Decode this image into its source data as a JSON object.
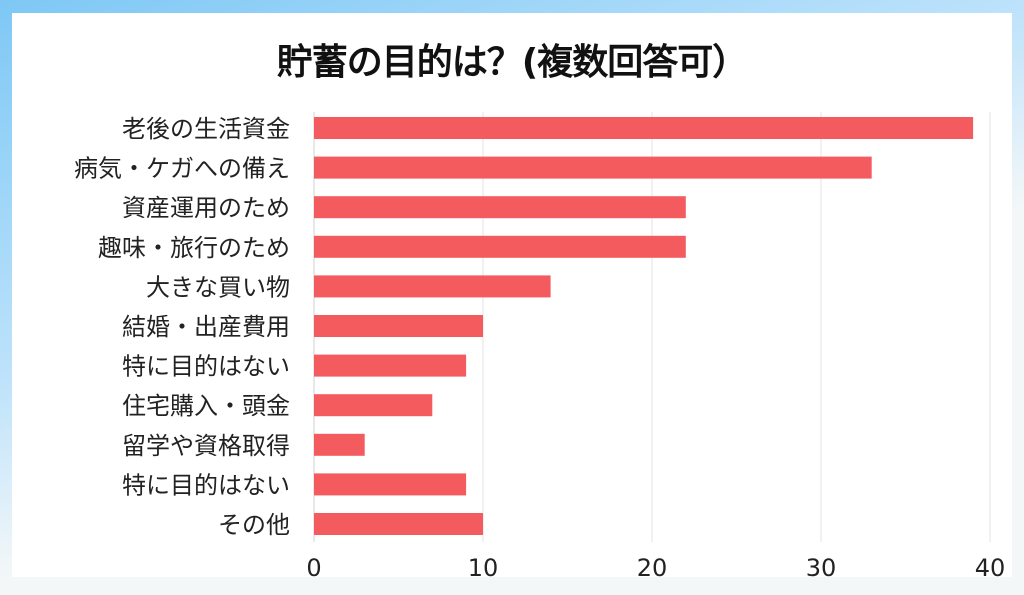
{
  "chart_data": {
    "type": "bar",
    "orientation": "horizontal",
    "title": "貯蓄の目的は？(複数回答可）",
    "categories": [
      "老後の生活資金",
      "病気・ケガへの備え",
      "資産運用のため",
      "趣味・旅行のため",
      "大きな買い物",
      "結婚・出産費用",
      "特に目的はない",
      "住宅購入・頭金",
      "留学や資格取得",
      "特に目的はない",
      "その他"
    ],
    "values": [
      39,
      33,
      22,
      22,
      14,
      10,
      9,
      7,
      3,
      9,
      10
    ],
    "xlim": [
      0,
      40
    ],
    "xticks": [
      "0",
      "10",
      "20",
      "30",
      "40"
    ],
    "grid": true,
    "bar_color": "#f45b5f"
  }
}
